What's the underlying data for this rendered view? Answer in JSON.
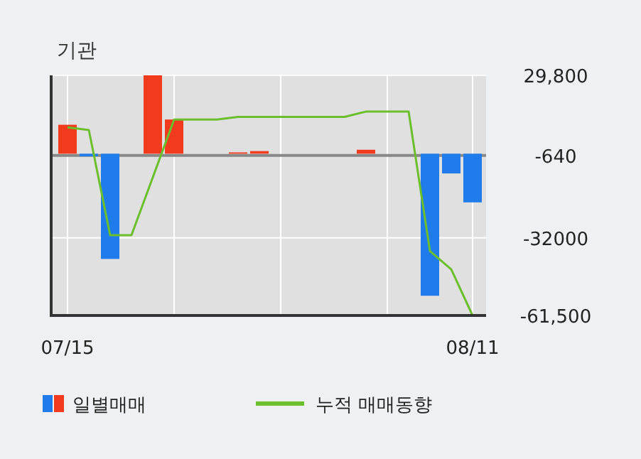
{
  "chart_data": {
    "type": "bar",
    "title": "기관",
    "categories": [
      "07/15",
      null,
      null,
      null,
      null,
      null,
      null,
      null,
      null,
      null,
      null,
      null,
      null,
      null,
      null,
      null,
      null,
      null,
      null,
      "08/11"
    ],
    "series": [
      {
        "name": "일별매매",
        "colors": [
          "#f23a1d",
          "#1f7cea",
          "#1f7cea",
          "#f23a1d",
          "#f23a1d",
          "#f23a1d",
          "#f23a1d",
          "#f23a1d",
          "#f23a1d",
          "#f23a1d",
          "#f23a1d",
          "#f23a1d",
          "#f23a1d",
          "#f23a1d",
          "#f23a1d",
          "#f23a1d",
          "#f23a1d",
          "#1f7cea",
          "#1f7cea",
          "#1f7cea"
        ],
        "values": [
          11000,
          -1000,
          -40000,
          0,
          29800,
          13000,
          0,
          0,
          500,
          1000,
          0,
          0,
          0,
          0,
          1500,
          0,
          0,
          -54000,
          -7500,
          -18500
        ]
      },
      {
        "name": "누적 매매동향",
        "type": "line",
        "color": "#6cbf2c",
        "values": [
          10000,
          9000,
          -31000,
          -31000,
          -9000,
          13000,
          13000,
          13000,
          14000,
          14000,
          14000,
          14000,
          14000,
          14000,
          16000,
          16000,
          16000,
          -37000,
          -44000,
          -61500
        ]
      }
    ],
    "ylim": [
      -61500,
      29800
    ],
    "yticks": [
      {
        "value": 29800,
        "label": "29,800"
      },
      -640,
      -32000,
      {
        "value": -61500,
        "label": "-61,500"
      }
    ],
    "ref_lines": [
      {
        "axis": "y",
        "value": -640,
        "color": "#888888"
      }
    ],
    "grid": true,
    "legend": "bottom"
  }
}
